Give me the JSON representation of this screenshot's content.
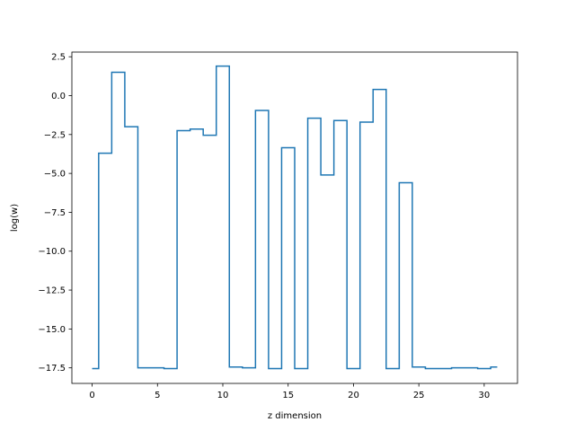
{
  "chart_data": {
    "type": "line",
    "drawstyle": "steps-mid",
    "title": "",
    "xlabel": "z dimension",
    "ylabel": "log(w)",
    "xlim": [
      -1.55,
      32.55
    ],
    "ylim": [
      -18.5,
      2.8
    ],
    "grid": false,
    "line_color": "#1f77b4",
    "xticks": [
      0,
      5,
      10,
      15,
      20,
      25,
      30
    ],
    "xtick_labels": [
      "0",
      "5",
      "10",
      "15",
      "20",
      "25",
      "30"
    ],
    "yticks": [
      2.5,
      0.0,
      -2.5,
      -5.0,
      -7.5,
      -10.0,
      -12.5,
      -15.0,
      -17.5
    ],
    "ytick_labels": [
      "2.5",
      "0.0",
      "−2.5",
      "−5.0",
      "−7.5",
      "−10.0",
      "−12.5",
      "−15.0",
      "−17.5"
    ],
    "series": [
      {
        "x": [
          0,
          1,
          2,
          3,
          4,
          5,
          6,
          7,
          8,
          9,
          10,
          11,
          12,
          13,
          14,
          15,
          16,
          17,
          18,
          19,
          20,
          21,
          22,
          23,
          24,
          25,
          26,
          27,
          28,
          29,
          30,
          31
        ],
        "y": [
          -17.55,
          -3.7,
          1.5,
          -2.0,
          -17.5,
          -17.5,
          -17.55,
          -2.25,
          -2.15,
          -2.55,
          1.9,
          -17.45,
          -17.5,
          -0.95,
          -17.55,
          -3.35,
          -17.55,
          -1.45,
          -5.1,
          -1.6,
          -17.55,
          -1.7,
          0.4,
          -17.55,
          -5.6,
          -17.45,
          -17.55,
          -17.55,
          -17.5,
          -17.5,
          -17.55,
          -17.45
        ]
      }
    ]
  }
}
